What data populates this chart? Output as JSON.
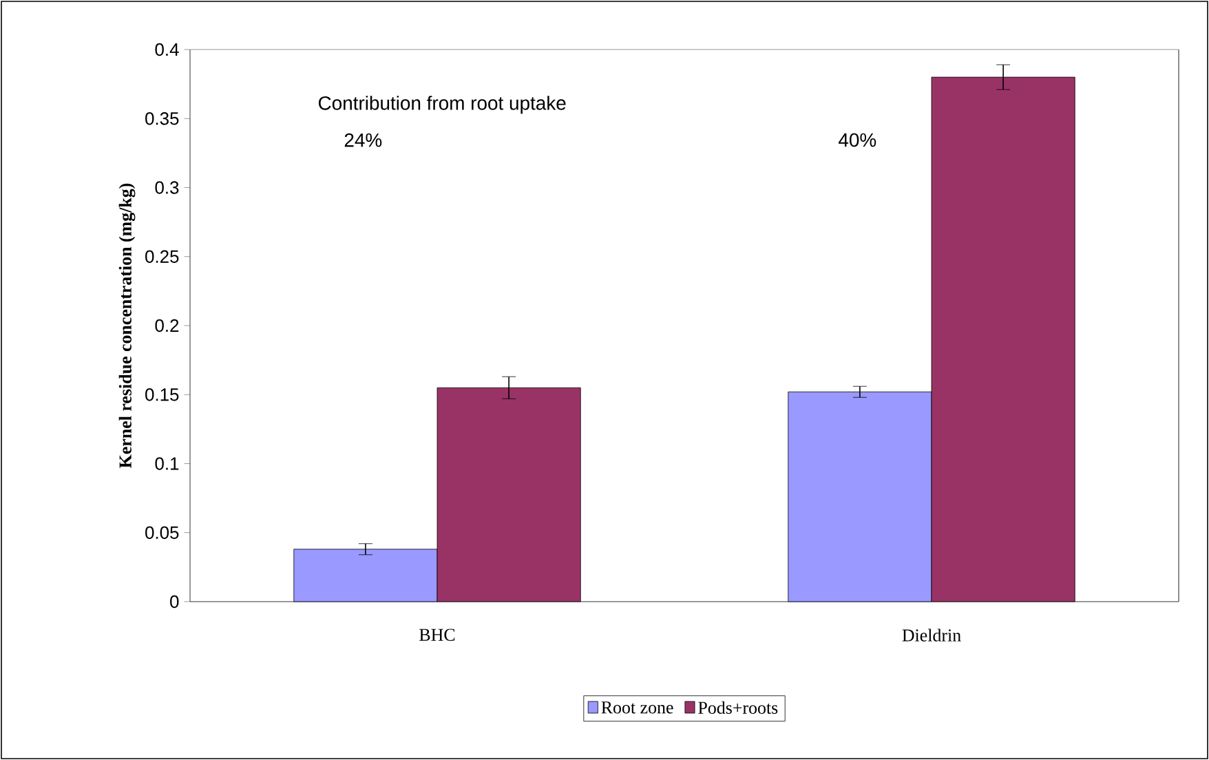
{
  "chart_data": {
    "type": "bar",
    "ylabel": "Kernel residue concentration (mg/kg)",
    "categories": [
      "BHC",
      "Dieldrin"
    ],
    "series": [
      {
        "name": "Root zone",
        "color": "#9999ff",
        "values": [
          0.038,
          0.152
        ],
        "errors": [
          0.004,
          0.004
        ]
      },
      {
        "name": "Pods+roots",
        "color": "#993366",
        "values": [
          0.155,
          0.38
        ],
        "errors": [
          0.008,
          0.009
        ]
      }
    ],
    "ylim": [
      0,
      0.4
    ],
    "yticks": [
      0,
      0.05,
      0.1,
      0.15,
      0.2,
      0.25,
      0.3,
      0.35,
      0.4
    ],
    "grid": false,
    "legend": "bottom",
    "annotations": [
      "Contribution from root uptake",
      "24%",
      "40%"
    ]
  }
}
